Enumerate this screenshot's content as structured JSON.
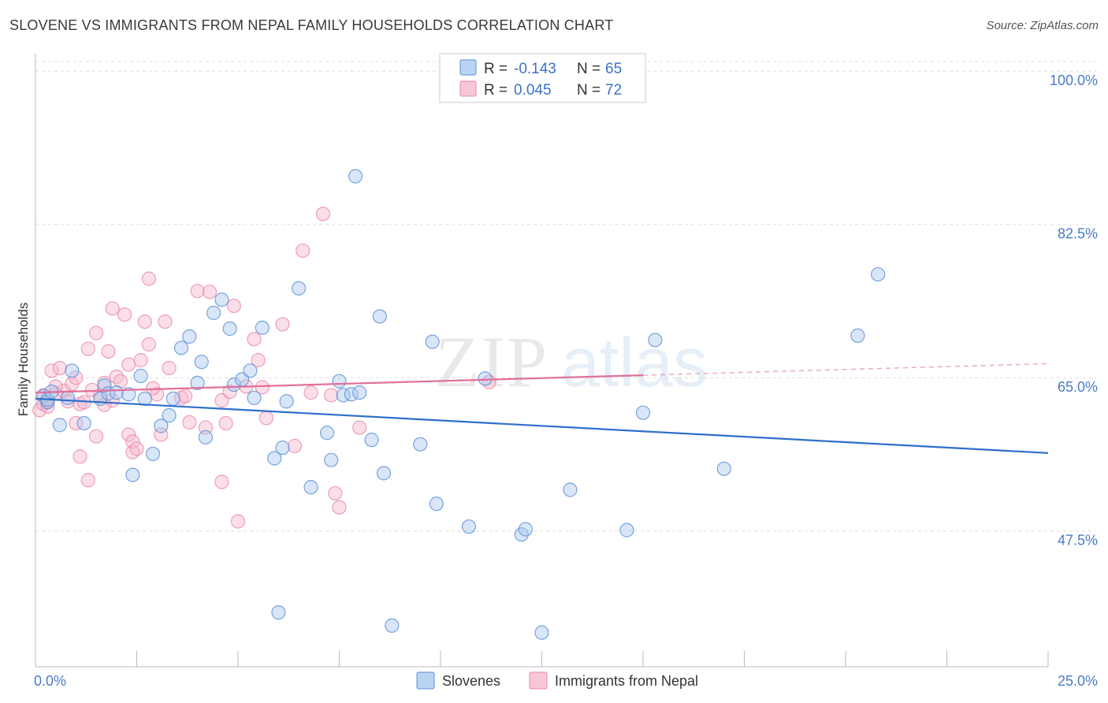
{
  "title": "SLOVENE VS IMMIGRANTS FROM NEPAL FAMILY HOUSEHOLDS CORRELATION CHART",
  "source": "Source: ZipAtlas.com",
  "watermark": {
    "zip": "ZIP",
    "atlas": "atlas"
  },
  "legend_top": [
    {
      "r_label": "R =",
      "r_value": "-0.143",
      "n_label": "N =",
      "n_value": "65"
    },
    {
      "r_label": "R =",
      "r_value": "0.045",
      "n_label": "N =",
      "n_value": "72"
    }
  ],
  "colors": {
    "slovenes_fill": "#a9c8f0",
    "slovenes_stroke": "#5a8fd6",
    "slovenes_line": "#2e6fcc",
    "nepal_fill": "#f6b8cb",
    "nepal_stroke": "#e889a8",
    "nepal_line": "#e0709a",
    "value_text": "#3b73c9",
    "grid": "#dddddd"
  },
  "chart_data": {
    "type": "scatter",
    "title": "SLOVENE VS IMMIGRANTS FROM NEPAL FAMILY HOUSEHOLDS CORRELATION CHART",
    "xlabel": "",
    "ylabel": "Family Households",
    "xlim": [
      0,
      25
    ],
    "ylim": [
      32,
      102
    ],
    "x_tick_labels": [
      "0.0%",
      "25.0%"
    ],
    "y_ticks": [
      47.5,
      65.0,
      82.5,
      100.0
    ],
    "y_tick_labels": [
      "47.5%",
      "65.0%",
      "82.5%",
      "100.0%"
    ],
    "grid": true,
    "legend_position": "bottom-center",
    "series": [
      {
        "name": "Slovenes",
        "trend": {
          "x": [
            0,
            25
          ],
          "y": [
            62.6,
            56.4
          ],
          "dashed_from": null
        },
        "points": [
          [
            0.2,
            62.9
          ],
          [
            0.3,
            62.2
          ],
          [
            0.3,
            62.5
          ],
          [
            0.4,
            63.4
          ],
          [
            0.6,
            59.6
          ],
          [
            0.8,
            62.7
          ],
          [
            0.9,
            65.8
          ],
          [
            1.2,
            59.8
          ],
          [
            1.6,
            62.6
          ],
          [
            1.7,
            64.1
          ],
          [
            1.8,
            63.2
          ],
          [
            2.0,
            63.3
          ],
          [
            2.3,
            63.1
          ],
          [
            2.4,
            53.9
          ],
          [
            2.6,
            65.2
          ],
          [
            2.7,
            62.6
          ],
          [
            2.9,
            56.3
          ],
          [
            3.1,
            59.5
          ],
          [
            3.3,
            60.7
          ],
          [
            3.4,
            62.6
          ],
          [
            3.6,
            68.4
          ],
          [
            3.8,
            69.7
          ],
          [
            4.0,
            64.4
          ],
          [
            4.1,
            66.8
          ],
          [
            4.2,
            58.2
          ],
          [
            4.4,
            72.4
          ],
          [
            4.6,
            73.9
          ],
          [
            4.8,
            70.6
          ],
          [
            4.9,
            64.2
          ],
          [
            5.1,
            64.8
          ],
          [
            5.3,
            65.8
          ],
          [
            5.4,
            62.7
          ],
          [
            5.6,
            70.7
          ],
          [
            5.9,
            55.8
          ],
          [
            6.1,
            57.0
          ],
          [
            6.2,
            62.3
          ],
          [
            6.5,
            75.2
          ],
          [
            6.8,
            52.5
          ],
          [
            7.2,
            58.7
          ],
          [
            7.3,
            55.6
          ],
          [
            7.5,
            64.6
          ],
          [
            7.6,
            63.0
          ],
          [
            7.8,
            63.1
          ],
          [
            7.9,
            88.0
          ],
          [
            8.0,
            63.3
          ],
          [
            8.3,
            57.9
          ],
          [
            8.5,
            72.0
          ],
          [
            8.6,
            54.1
          ],
          [
            8.8,
            36.7
          ],
          [
            9.5,
            57.4
          ],
          [
            9.8,
            69.1
          ],
          [
            9.9,
            50.6
          ],
          [
            10.7,
            48.0
          ],
          [
            11.1,
            64.9
          ],
          [
            12.0,
            47.1
          ],
          [
            12.1,
            47.7
          ],
          [
            13.2,
            52.2
          ],
          [
            14.6,
            47.6
          ],
          [
            15.0,
            61.0
          ],
          [
            15.3,
            69.3
          ],
          [
            17.0,
            54.6
          ],
          [
            20.3,
            69.8
          ],
          [
            20.8,
            76.8
          ],
          [
            6.0,
            38.2
          ],
          [
            12.5,
            35.9
          ]
        ]
      },
      {
        "name": "Immigrants from Nepal",
        "trend": {
          "x": [
            0,
            25
          ],
          "y": [
            63.3,
            66.6
          ],
          "dashed_from": 15
        },
        "points": [
          [
            0.1,
            61.3
          ],
          [
            0.2,
            62.0
          ],
          [
            0.3,
            62.3
          ],
          [
            0.3,
            61.7
          ],
          [
            0.4,
            65.8
          ],
          [
            0.5,
            63.2
          ],
          [
            0.6,
            66.1
          ],
          [
            0.7,
            63.5
          ],
          [
            0.8,
            62.3
          ],
          [
            0.9,
            64.3
          ],
          [
            1.0,
            59.8
          ],
          [
            1.0,
            65.0
          ],
          [
            1.1,
            62.0
          ],
          [
            1.1,
            56.0
          ],
          [
            1.2,
            62.2
          ],
          [
            1.3,
            68.3
          ],
          [
            1.3,
            53.3
          ],
          [
            1.5,
            58.3
          ],
          [
            1.5,
            70.1
          ],
          [
            1.6,
            63.0
          ],
          [
            1.7,
            64.4
          ],
          [
            1.7,
            61.9
          ],
          [
            1.8,
            68.0
          ],
          [
            1.9,
            62.4
          ],
          [
            1.9,
            72.9
          ],
          [
            2.0,
            65.1
          ],
          [
            2.1,
            64.6
          ],
          [
            2.2,
            72.2
          ],
          [
            2.3,
            66.5
          ],
          [
            2.3,
            58.5
          ],
          [
            2.4,
            57.7
          ],
          [
            2.4,
            56.5
          ],
          [
            2.5,
            56.9
          ],
          [
            2.6,
            67.0
          ],
          [
            2.7,
            71.4
          ],
          [
            2.8,
            68.8
          ],
          [
            2.8,
            76.3
          ],
          [
            3.0,
            63.1
          ],
          [
            3.1,
            58.5
          ],
          [
            3.2,
            71.4
          ],
          [
            3.3,
            66.1
          ],
          [
            3.6,
            62.7
          ],
          [
            3.7,
            62.9
          ],
          [
            3.8,
            59.9
          ],
          [
            4.0,
            74.9
          ],
          [
            4.2,
            59.3
          ],
          [
            4.3,
            74.8
          ],
          [
            4.6,
            53.1
          ],
          [
            4.6,
            62.4
          ],
          [
            4.7,
            59.8
          ],
          [
            4.8,
            63.4
          ],
          [
            4.9,
            73.2
          ],
          [
            5.0,
            48.6
          ],
          [
            5.4,
            69.4
          ],
          [
            5.5,
            67.0
          ],
          [
            5.6,
            63.9
          ],
          [
            5.7,
            60.4
          ],
          [
            6.1,
            71.1
          ],
          [
            6.4,
            57.2
          ],
          [
            6.6,
            79.5
          ],
          [
            7.1,
            83.7
          ],
          [
            7.3,
            63.0
          ],
          [
            7.4,
            51.8
          ],
          [
            7.5,
            50.2
          ],
          [
            8.0,
            59.3
          ],
          [
            11.2,
            64.5
          ],
          [
            0.2,
            63.0
          ],
          [
            0.5,
            64.0
          ],
          [
            1.4,
            63.6
          ],
          [
            2.9,
            63.8
          ],
          [
            5.2,
            64.0
          ],
          [
            6.8,
            63.3
          ]
        ]
      }
    ]
  },
  "legend_bottom": [
    {
      "label": "Slovenes"
    },
    {
      "label": "Immigrants from Nepal"
    }
  ]
}
